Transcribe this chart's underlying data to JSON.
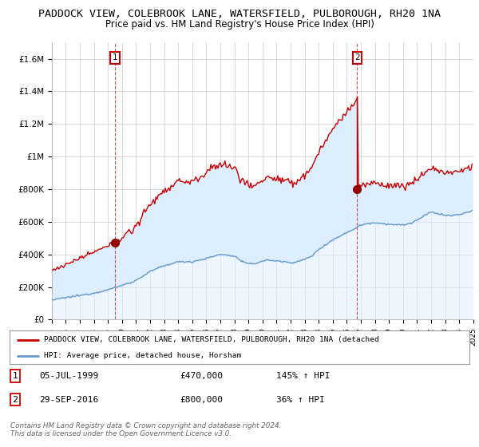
{
  "title": "PADDOCK VIEW, COLEBROOK LANE, WATERSFIELD, PULBOROUGH, RH20 1NA",
  "subtitle": "Price paid vs. HM Land Registry's House Price Index (HPI)",
  "title_fontsize": 9.5,
  "subtitle_fontsize": 8.5,
  "ylim": [
    0,
    1700000
  ],
  "yticks": [
    0,
    200000,
    400000,
    600000,
    800000,
    1000000,
    1200000,
    1400000,
    1600000
  ],
  "ytick_labels": [
    "£0",
    "£200K",
    "£400K",
    "£600K",
    "£800K",
    "£1M",
    "£1.2M",
    "£1.4M",
    "£1.6M"
  ],
  "background_color": "#ffffff",
  "plot_bg_color": "#ffffff",
  "fill_color": "#ddeeff",
  "grid_color": "#cccccc",
  "sale_color": "#cc0000",
  "hpi_color": "#6699cc",
  "legend_sale_label": "PADDOCK VIEW, COLEBROOK LANE, WATERSFIELD, PULBOROUGH, RH20 1NA (detached",
  "legend_hpi_label": "HPI: Average price, detached house, Horsham",
  "table_row1": [
    "1",
    "05-JUL-1999",
    "£470,000",
    "145% ↑ HPI"
  ],
  "table_row2": [
    "2",
    "29-SEP-2016",
    "£800,000",
    "36% ↑ HPI"
  ],
  "copyright_text": "Contains HM Land Registry data © Crown copyright and database right 2024.\nThis data is licensed under the Open Government Licence v3.0.",
  "sale1_year": 1999,
  "sale1_month": 7,
  "sale1_day": 5,
  "sale1_price": 470000,
  "sale2_year": 2016,
  "sale2_month": 9,
  "sale2_day": 29,
  "sale2_price": 800000
}
